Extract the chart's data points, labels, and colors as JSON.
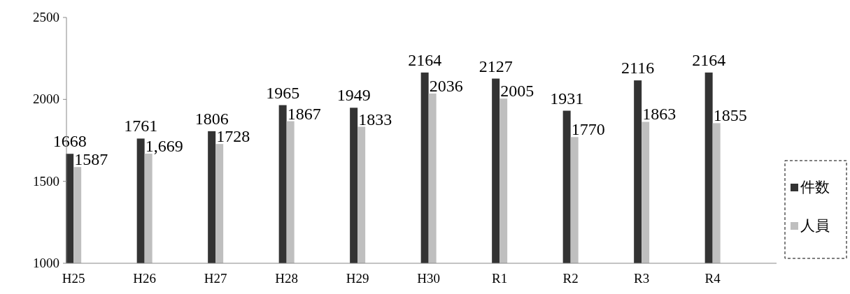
{
  "chart_data": {
    "type": "bar",
    "categories": [
      "H25",
      "H26",
      "H27",
      "H28",
      "H29",
      "H30",
      "R1",
      "R2",
      "R3",
      "R4"
    ],
    "series": [
      {
        "name": "件数",
        "color": "#333333",
        "values": [
          1668,
          1761,
          1806,
          1965,
          1949,
          2164,
          2127,
          1931,
          2116,
          2164
        ],
        "value_labels": [
          "1668",
          "1761",
          "1806",
          "1965",
          "1949",
          "2164",
          "2127",
          "1931",
          "2116",
          "2164"
        ]
      },
      {
        "name": "人員",
        "color": "#bfbfbf",
        "values": [
          1587,
          1669,
          1728,
          1867,
          1833,
          2036,
          2005,
          1770,
          1863,
          1855
        ],
        "value_labels": [
          "1587",
          "1,669",
          "1728",
          "1867",
          "1833",
          "2036",
          "2005",
          "1770",
          "1863",
          "1855"
        ]
      }
    ],
    "ylim": [
      1000,
      2500
    ],
    "yticks": [
      1000,
      1500,
      2000,
      2500
    ],
    "legend": "right",
    "grid": false
  }
}
